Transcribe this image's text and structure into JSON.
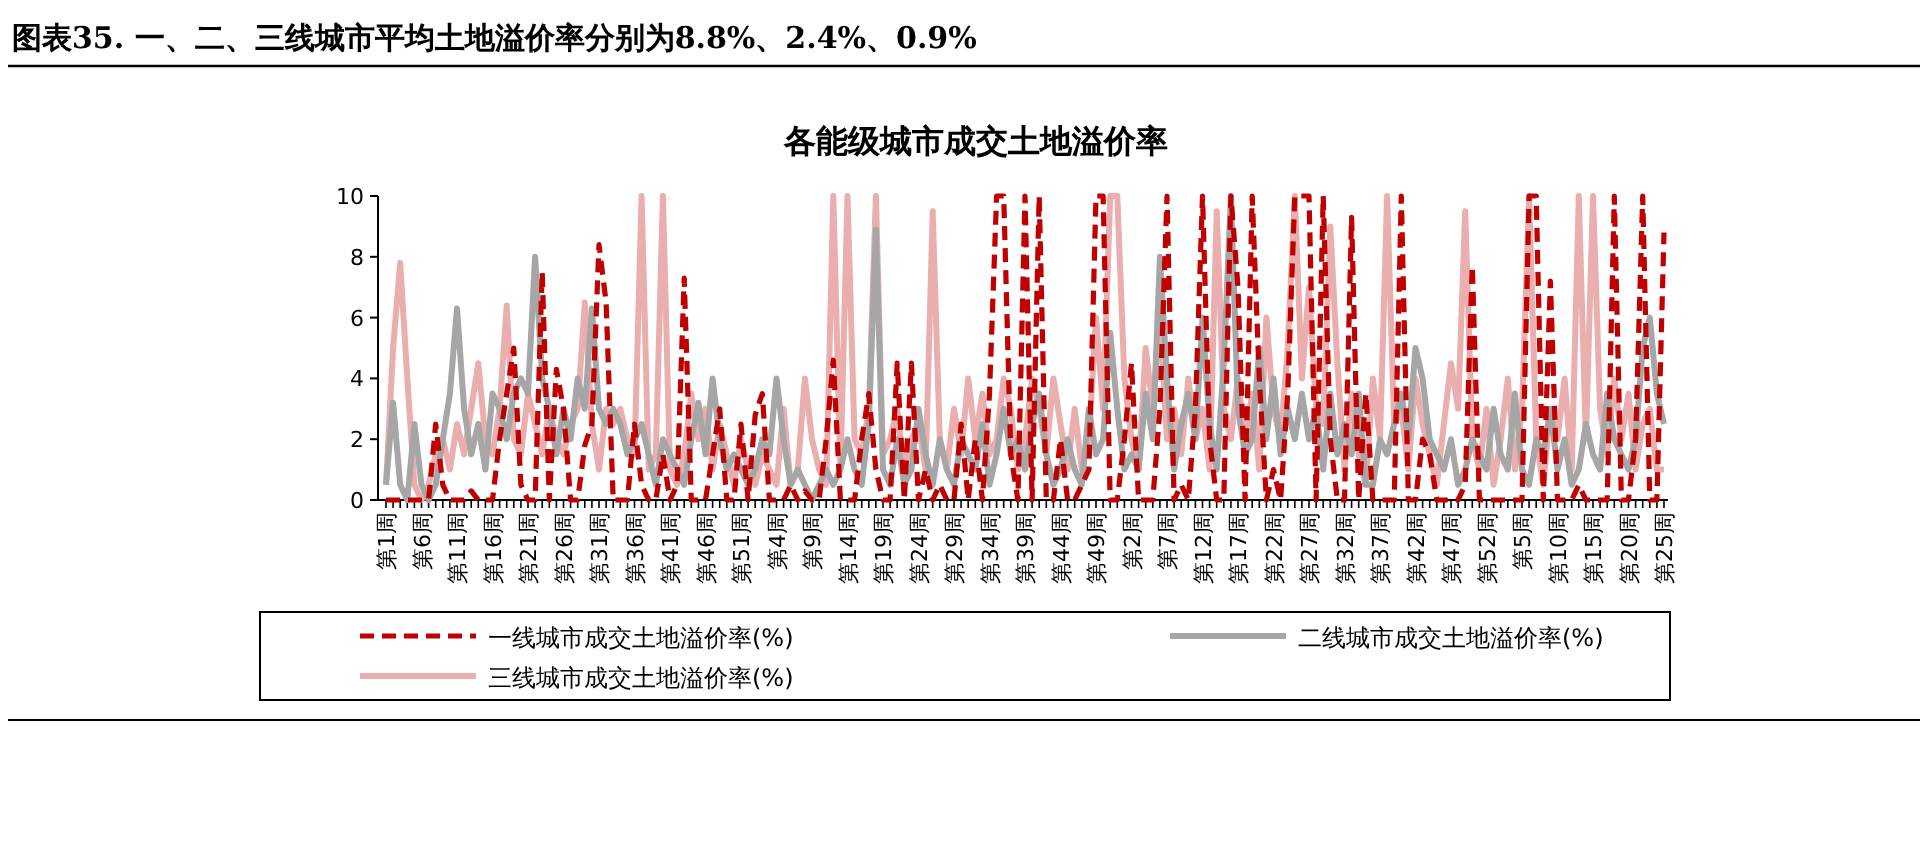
{
  "chart_data": {
    "type": "line",
    "title": "图表35. 一、二、三线城市平均土地溢价率分别为8.8%、2.4%、0.9%",
    "subtitle": "各能级城市成交土地溢价率",
    "categories": [
      "第1周",
      null,
      null,
      null,
      null,
      "第6周",
      null,
      null,
      null,
      null,
      "第11周",
      null,
      null,
      null,
      null,
      "第16周",
      null,
      null,
      null,
      null,
      "第21周",
      null,
      null,
      null,
      null,
      "第26周",
      null,
      null,
      null,
      null,
      "第31周",
      null,
      null,
      null,
      null,
      "第36周",
      null,
      null,
      null,
      null,
      "第41周",
      null,
      null,
      null,
      null,
      "第46周",
      null,
      null,
      null,
      null,
      "第51周",
      null,
      null,
      null,
      null,
      "第4周",
      null,
      null,
      null,
      null,
      "第9周",
      null,
      null,
      null,
      null,
      "第14周",
      null,
      null,
      null,
      null,
      "第19周",
      null,
      null,
      null,
      null,
      "第24周",
      null,
      null,
      null,
      null,
      "第29周",
      null,
      null,
      null,
      null,
      "第34周",
      null,
      null,
      null,
      null,
      "第39周",
      null,
      null,
      null,
      null,
      "第44周",
      null,
      null,
      null,
      null,
      "第49周",
      null,
      null,
      null,
      null,
      "第2周",
      null,
      null,
      null,
      null,
      "第7周",
      null,
      null,
      null,
      null,
      "第12周",
      null,
      null,
      null,
      null,
      "第17周",
      null,
      null,
      null,
      null,
      "第22周",
      null,
      null,
      null,
      null,
      "第27周",
      null,
      null,
      null,
      null,
      "第32周",
      null,
      null,
      null,
      null,
      "第37周",
      null,
      null,
      null,
      null,
      "第42周",
      null,
      null,
      null,
      null,
      "第47周",
      null,
      null,
      null,
      null,
      "第52周",
      null,
      null,
      null,
      null,
      "第5周",
      null,
      null,
      null,
      null,
      "第10周",
      null,
      null,
      null,
      null,
      "第15周",
      null,
      null,
      null,
      null,
      "第20周",
      null,
      null,
      null,
      null,
      "第25周"
    ],
    "series": [
      {
        "name": "一线城市成交土地溢价率(%)",
        "color": "#c00000",
        "line_style": "dashed",
        "values": [
          0,
          0,
          0,
          0,
          0,
          0,
          0,
          2.5,
          0.5,
          0,
          0,
          0,
          0.3,
          0,
          0,
          0,
          2,
          3.5,
          5,
          0.5,
          0,
          0,
          7.5,
          0,
          4.3,
          3,
          0,
          0,
          1.8,
          2.5,
          8.4,
          6.5,
          0,
          0,
          0,
          2.5,
          0.5,
          0,
          0,
          1.5,
          0,
          0.5,
          7.3,
          0,
          0,
          0,
          1.5,
          3,
          0,
          0,
          2.5,
          0,
          2.8,
          3.5,
          0,
          0,
          0,
          0.5,
          0,
          0.3,
          0,
          0,
          2,
          4.6,
          0,
          0,
          0,
          2,
          3.5,
          1,
          0,
          0,
          4.5,
          0,
          4.5,
          0,
          1,
          0,
          0.5,
          0,
          0,
          2.5,
          0,
          2,
          0,
          3.5,
          10,
          10,
          1.5,
          0,
          10,
          0,
          10,
          0,
          0,
          2,
          0,
          0,
          0.5,
          1,
          10,
          10,
          0,
          0,
          2,
          4.5,
          0,
          0,
          0,
          3,
          10,
          0,
          0.5,
          0,
          3,
          10,
          2,
          0,
          0,
          10,
          7,
          0,
          10,
          4,
          0,
          1,
          0,
          3.5,
          10,
          10,
          10,
          0,
          10,
          2,
          0,
          0,
          9.3,
          0,
          3.5,
          0,
          0,
          0,
          0,
          10,
          0,
          0,
          2,
          1.5,
          0,
          0,
          0,
          0,
          0.5,
          7.7,
          0,
          0,
          0,
          0,
          0,
          0,
          0,
          10,
          10,
          0,
          7.2,
          0,
          0,
          0,
          0.5,
          0,
          0,
          0,
          0,
          10,
          0,
          0,
          2,
          10,
          0,
          0,
          8.8
        ]
      },
      {
        "name": "二线城市成交土地溢价率(%)",
        "color": "#a6a6a6",
        "line_style": "solid",
        "values": [
          0.5,
          3.2,
          0.5,
          0,
          2.5,
          0.5,
          0,
          0.5,
          2,
          3.5,
          6.3,
          3,
          1.5,
          2.5,
          1,
          3.5,
          3,
          2,
          3.5,
          4,
          3.5,
          8,
          4,
          3,
          1.5,
          3,
          2,
          4,
          3,
          6.3,
          3,
          2.5,
          3,
          2.5,
          1.5,
          2,
          2.5,
          1.5,
          0.5,
          2,
          1.5,
          1,
          0.5,
          2,
          3.2,
          1.5,
          4,
          2,
          1,
          1.5,
          1,
          0.5,
          1,
          2,
          1.5,
          4,
          2,
          0.5,
          1,
          0.5,
          0,
          0.5,
          1,
          0.5,
          1,
          2,
          1,
          0.5,
          2.5,
          8.9,
          1,
          0.5,
          2,
          0.5,
          1,
          3,
          1.5,
          0.5,
          2,
          1,
          0.5,
          2,
          1.5,
          1,
          2.5,
          0.5,
          1.5,
          3,
          1.5,
          2,
          1,
          2.5,
          3.5,
          1.5,
          0.5,
          1,
          2,
          1,
          0.5,
          3,
          1.5,
          2,
          5.5,
          3,
          1,
          1.5,
          1,
          3.5,
          2,
          8,
          4,
          1,
          2.5,
          3.5,
          2,
          6,
          2.5,
          1,
          4.5,
          10,
          3,
          1.5,
          2,
          5,
          2,
          4,
          1.5,
          3,
          2,
          3.5,
          2,
          3,
          1,
          3.5,
          1.5,
          2.5,
          1.5,
          3.5,
          0.5,
          0.5,
          2,
          1.5,
          2.5,
          3.5,
          2,
          5,
          4,
          2,
          1.5,
          1,
          2,
          0.5,
          1,
          2,
          1.5,
          1,
          3,
          1.5,
          1,
          3.5,
          1,
          0.5,
          2,
          1.5,
          3,
          1,
          2,
          0.5,
          1,
          2.5,
          1.5,
          1,
          3.5,
          2,
          1.5,
          1,
          2,
          5,
          6,
          3.5,
          2.5
        ]
      },
      {
        "name": "三线城市成交土地溢价率(%)",
        "color": "#eaaeae",
        "line_style": "solid",
        "values": [
          0.5,
          5,
          7.8,
          4,
          0.5,
          0,
          0.5,
          1.5,
          2,
          1,
          2.5,
          1.5,
          3,
          4.5,
          2,
          1.5,
          3,
          6.4,
          2,
          1.5,
          3.5,
          2.5,
          1.5,
          3,
          2,
          1.5,
          2.5,
          3,
          6.5,
          2.5,
          1,
          3,
          2.5,
          3,
          2,
          1.5,
          10,
          1,
          1.5,
          10,
          1,
          0.5,
          1.5,
          3.5,
          2,
          3,
          1,
          2.5,
          1.5,
          0.5,
          2,
          1,
          0.5,
          1.5,
          1,
          0.5,
          3,
          0.5,
          1,
          4,
          2,
          1,
          0.5,
          10,
          1,
          10,
          2,
          1.5,
          3,
          10,
          1.5,
          2,
          3,
          1,
          2,
          2.5,
          1,
          9.5,
          2,
          1,
          3,
          1.5,
          4,
          2,
          3.5,
          1.5,
          2,
          4,
          3,
          1,
          2,
          4,
          3,
          1.5,
          4,
          2.5,
          1,
          3,
          1,
          2,
          6,
          3,
          10,
          10,
          4,
          2,
          1,
          5,
          3,
          6,
          2,
          3,
          1.5,
          4,
          2,
          3,
          1,
          9.5,
          3,
          2,
          4,
          2,
          3.5,
          1,
          6,
          3,
          2,
          5,
          10,
          4,
          7,
          3,
          2.5,
          9,
          4.5,
          1,
          3.5,
          1.5,
          0.5,
          4,
          2,
          10,
          2.5,
          3,
          1,
          4,
          2.5,
          1.5,
          0.5,
          2.5,
          4.5,
          3,
          9.5,
          2,
          1,
          3,
          0.5,
          2,
          4,
          1,
          3,
          10,
          2,
          0.5,
          3,
          2,
          4,
          1,
          10,
          2,
          10,
          3,
          1.5,
          4,
          2,
          3.5,
          1,
          2.5,
          3,
          1,
          1
        ]
      }
    ],
    "ylim": [
      0,
      10
    ],
    "yticks": [
      0,
      2,
      4,
      6,
      8,
      10
    ],
    "legend": "bottom",
    "grid": false
  }
}
